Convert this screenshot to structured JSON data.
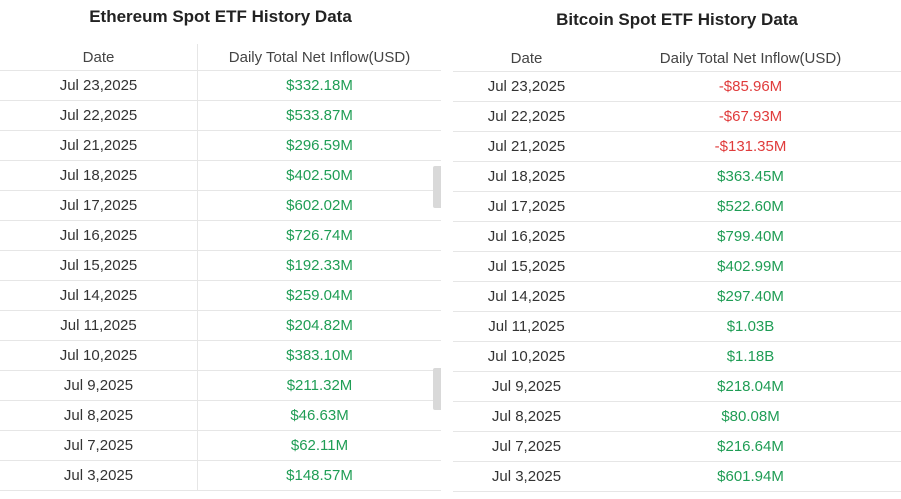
{
  "colors": {
    "positive": "#1f9d55",
    "negative": "#e03b3b"
  },
  "ethereum": {
    "title": "Ethereum Spot ETF History Data",
    "columns": {
      "date": "Date",
      "inflow": "Daily Total Net Inflow(USD)"
    },
    "rows": [
      {
        "date": "Jul 23,2025",
        "inflow": "$332.18M",
        "sign": "pos"
      },
      {
        "date": "Jul 22,2025",
        "inflow": "$533.87M",
        "sign": "pos"
      },
      {
        "date": "Jul 21,2025",
        "inflow": "$296.59M",
        "sign": "pos"
      },
      {
        "date": "Jul 18,2025",
        "inflow": "$402.50M",
        "sign": "pos"
      },
      {
        "date": "Jul 17,2025",
        "inflow": "$602.02M",
        "sign": "pos"
      },
      {
        "date": "Jul 16,2025",
        "inflow": "$726.74M",
        "sign": "pos"
      },
      {
        "date": "Jul 15,2025",
        "inflow": "$192.33M",
        "sign": "pos"
      },
      {
        "date": "Jul 14,2025",
        "inflow": "$259.04M",
        "sign": "pos"
      },
      {
        "date": "Jul 11,2025",
        "inflow": "$204.82M",
        "sign": "pos"
      },
      {
        "date": "Jul 10,2025",
        "inflow": "$383.10M",
        "sign": "pos"
      },
      {
        "date": "Jul 9,2025",
        "inflow": "$211.32M",
        "sign": "pos"
      },
      {
        "date": "Jul 8,2025",
        "inflow": "$46.63M",
        "sign": "pos"
      },
      {
        "date": "Jul 7,2025",
        "inflow": "$62.11M",
        "sign": "pos"
      },
      {
        "date": "Jul 3,2025",
        "inflow": "$148.57M",
        "sign": "pos"
      }
    ]
  },
  "bitcoin": {
    "title": "Bitcoin Spot ETF History Data",
    "columns": {
      "date": "Date",
      "inflow": "Daily Total Net Inflow(USD)"
    },
    "rows": [
      {
        "date": "Jul 23,2025",
        "inflow": "-$85.96M",
        "sign": "neg"
      },
      {
        "date": "Jul 22,2025",
        "inflow": "-$67.93M",
        "sign": "neg"
      },
      {
        "date": "Jul 21,2025",
        "inflow": "-$131.35M",
        "sign": "neg"
      },
      {
        "date": "Jul 18,2025",
        "inflow": "$363.45M",
        "sign": "pos"
      },
      {
        "date": "Jul 17,2025",
        "inflow": "$522.60M",
        "sign": "pos"
      },
      {
        "date": "Jul 16,2025",
        "inflow": "$799.40M",
        "sign": "pos"
      },
      {
        "date": "Jul 15,2025",
        "inflow": "$402.99M",
        "sign": "pos"
      },
      {
        "date": "Jul 14,2025",
        "inflow": "$297.40M",
        "sign": "pos"
      },
      {
        "date": "Jul 11,2025",
        "inflow": "$1.03B",
        "sign": "pos"
      },
      {
        "date": "Jul 10,2025",
        "inflow": "$1.18B",
        "sign": "pos"
      },
      {
        "date": "Jul 9,2025",
        "inflow": "$218.04M",
        "sign": "pos"
      },
      {
        "date": "Jul 8,2025",
        "inflow": "$80.08M",
        "sign": "pos"
      },
      {
        "date": "Jul 7,2025",
        "inflow": "$216.64M",
        "sign": "pos"
      },
      {
        "date": "Jul 3,2025",
        "inflow": "$601.94M",
        "sign": "pos"
      }
    ]
  }
}
